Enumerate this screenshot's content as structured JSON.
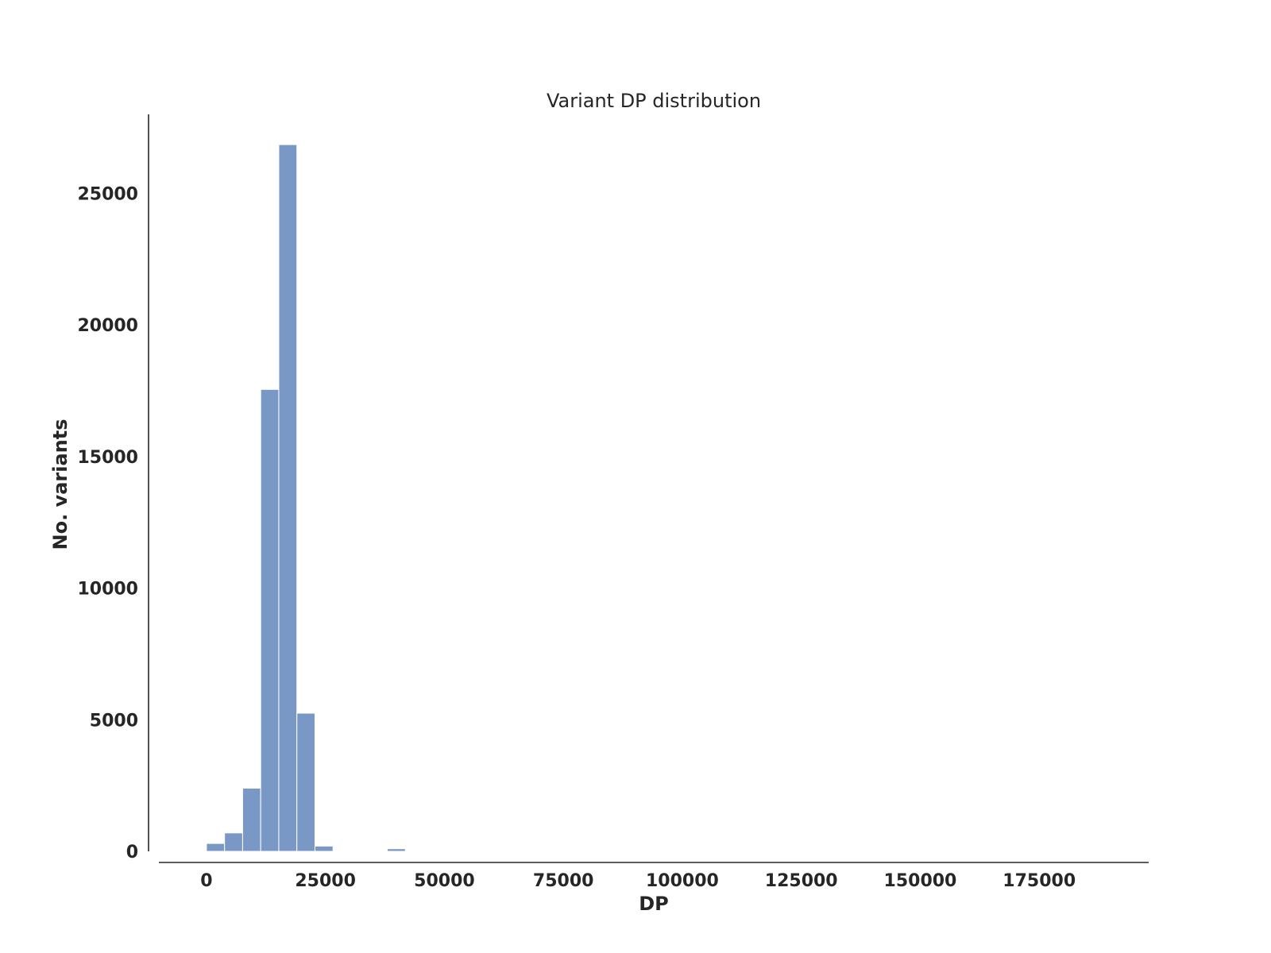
{
  "chart_data": {
    "type": "bar",
    "title": "Variant DP distribution",
    "xlabel": "DP",
    "ylabel": "No. variants",
    "xlim": [
      -10000,
      198000
    ],
    "ylim": [
      0,
      28000
    ],
    "x_ticks": [
      0,
      25000,
      50000,
      75000,
      100000,
      125000,
      150000,
      175000
    ],
    "y_ticks": [
      0,
      5000,
      10000,
      15000,
      20000,
      25000
    ],
    "grid": false,
    "color": "#7a98c6",
    "bins": [
      {
        "x0": 0,
        "x1": 3800,
        "value": 300
      },
      {
        "x0": 3800,
        "x1": 7600,
        "value": 700
      },
      {
        "x0": 7600,
        "x1": 11400,
        "value": 2400
      },
      {
        "x0": 11400,
        "x1": 15200,
        "value": 17550
      },
      {
        "x0": 15200,
        "x1": 19000,
        "value": 26850
      },
      {
        "x0": 19000,
        "x1": 22800,
        "value": 5250
      },
      {
        "x0": 22800,
        "x1": 26600,
        "value": 200
      },
      {
        "x0": 26600,
        "x1": 30400,
        "value": 0
      },
      {
        "x0": 30400,
        "x1": 34200,
        "value": 0
      },
      {
        "x0": 34200,
        "x1": 38000,
        "value": 0
      },
      {
        "x0": 38000,
        "x1": 41800,
        "value": 100
      },
      {
        "x0": 41800,
        "x1": 45600,
        "value": 0
      },
      {
        "x0": 45600,
        "x1": 49400,
        "value": 0
      },
      {
        "x0": 49400,
        "x1": 53200,
        "value": 20
      }
    ]
  }
}
